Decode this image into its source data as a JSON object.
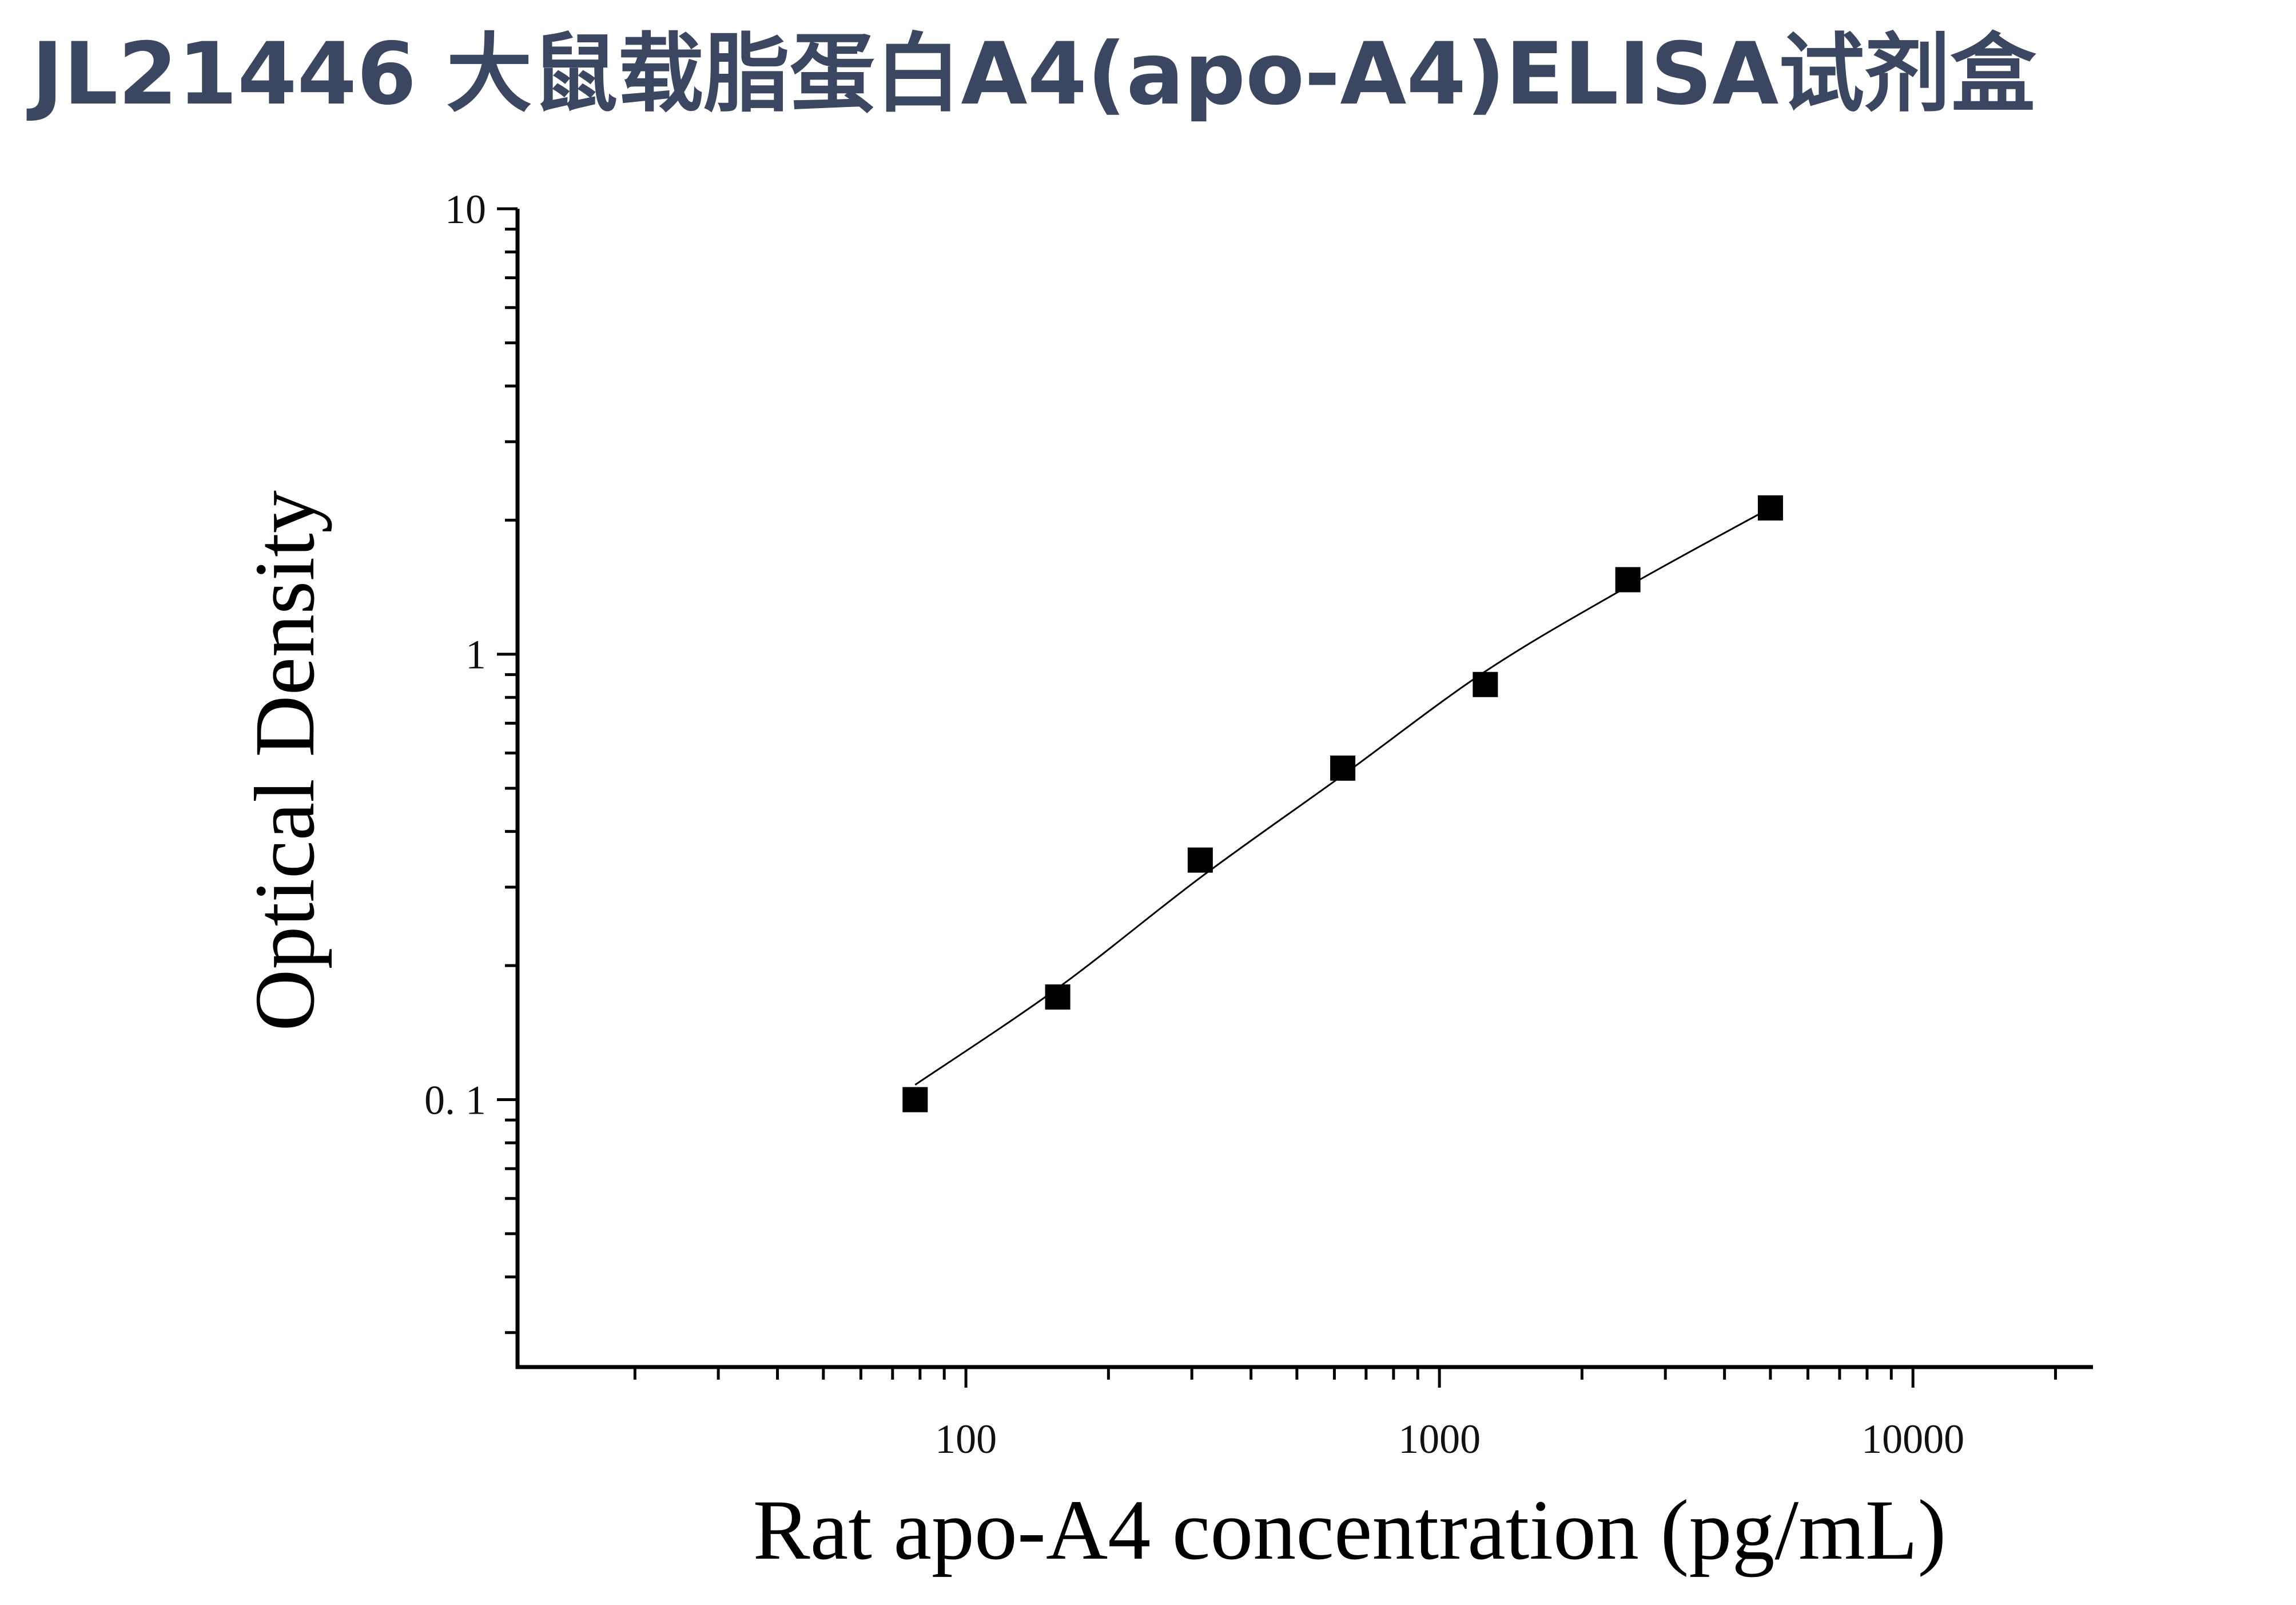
{
  "chart_data": {
    "type": "scatter",
    "title": "JL21446 大鼠载脂蛋白A4(apo-A4)ELISA试剂盒",
    "xlabel": "Rat apo-A4 concentration (pg/mL)",
    "ylabel": "Optical Density",
    "xscale": "log",
    "yscale": "log",
    "xlim": [
      11.3,
      24000
    ],
    "ylim": [
      0.0251,
      10
    ],
    "x_ticks": [
      "100",
      "1000",
      "10000"
    ],
    "y_ticks": [
      "0. 1",
      "1",
      "10"
    ],
    "grid": false,
    "legend": "none",
    "marker": "square",
    "colors": {
      "points": "#000000",
      "fit_line": "#000000",
      "title": "#3b4660"
    },
    "series": [
      {
        "x": [
          78.125,
          156.25,
          312.5,
          625,
          1250,
          2500,
          5000
        ],
        "y": [
          0.1,
          0.17,
          0.345,
          0.555,
          0.855,
          1.47,
          2.13
        ]
      }
    ],
    "fit_curve": {
      "x": [
        78.125,
        156.25,
        312.5,
        625,
        1250,
        2500,
        5000
      ],
      "y": [
        0.108,
        0.178,
        0.315,
        0.535,
        0.915,
        1.42,
        2.13
      ]
    }
  }
}
